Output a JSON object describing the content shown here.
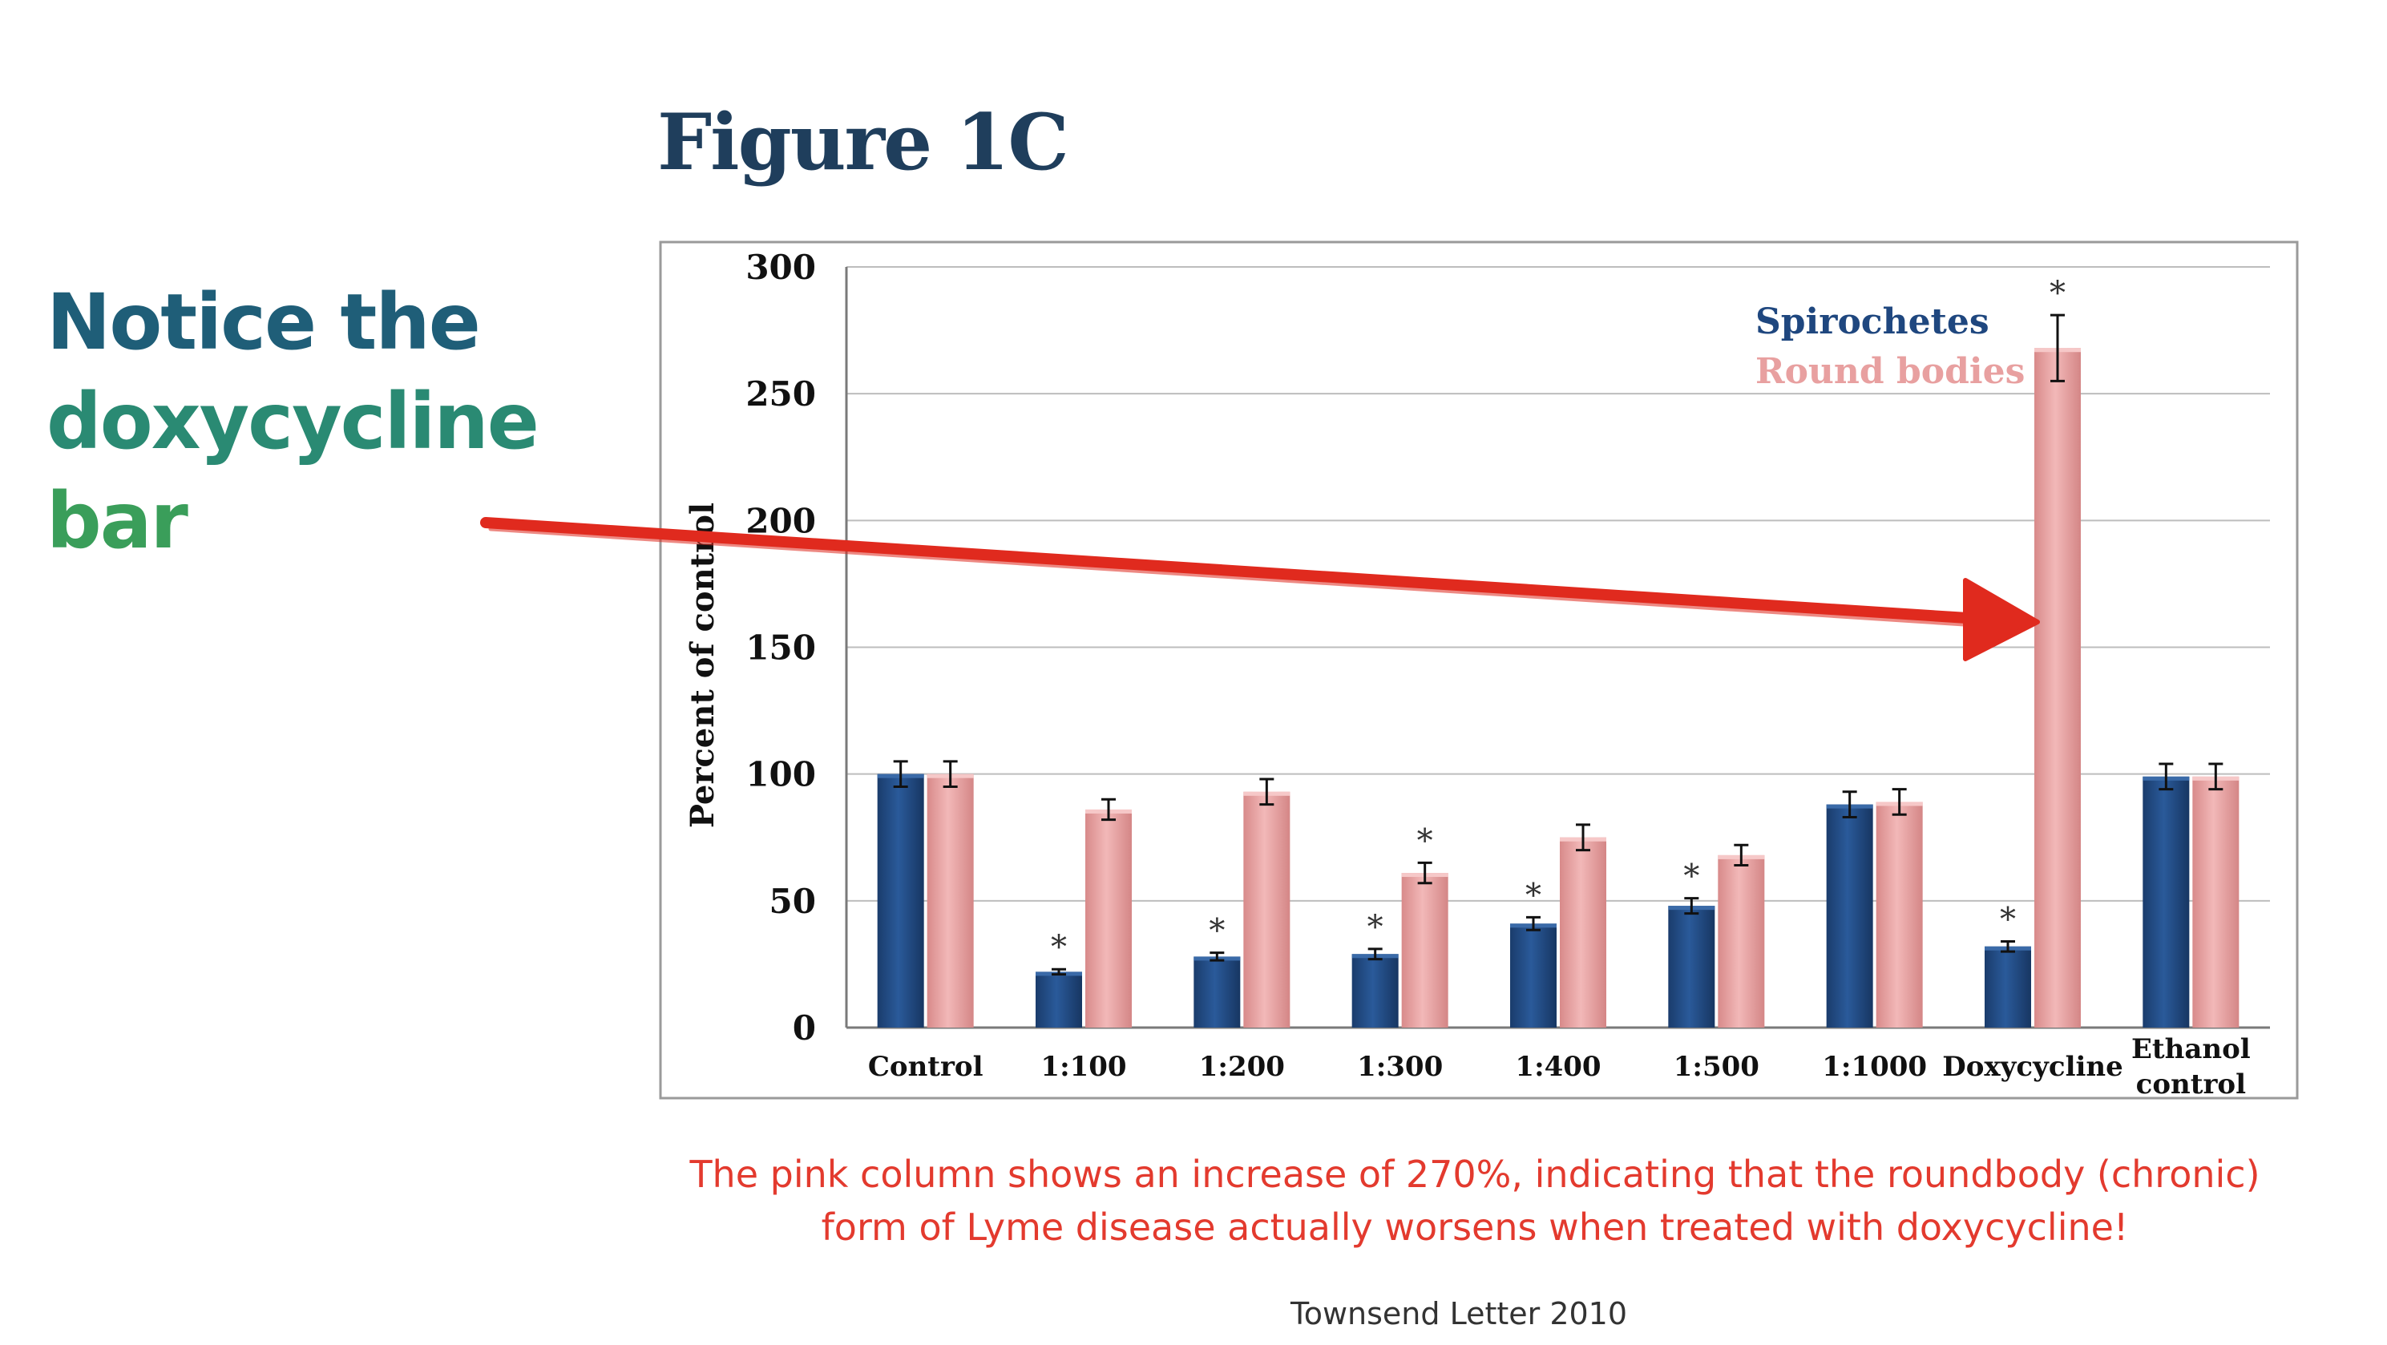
{
  "note": {
    "line1": "Notice the",
    "line2": "doxycycline",
    "line3": "bar"
  },
  "figure_title": "Figure 1C",
  "caption": {
    "line1": "The pink column shows an increase of 270%, indicating that the roundbody (chronic)",
    "line2": "form of Lyme disease actually worsens when treated with doxycycline!"
  },
  "source": "Townsend Letter 2010",
  "colors": {
    "spirochetes": "#1f477f",
    "round_bodies": "#e8a0a0",
    "arrow": "#e02a1e",
    "caption": "#e33a2e"
  },
  "chart_data": {
    "type": "bar",
    "ylabel": "Percent of control",
    "ylim": [
      0,
      300
    ],
    "yticks": [
      0,
      50,
      100,
      150,
      200,
      250,
      300
    ],
    "grid": true,
    "legend_position": "top-right",
    "categories": [
      [
        "Control"
      ],
      [
        "1:100"
      ],
      [
        "1:200"
      ],
      [
        "1:300"
      ],
      [
        "1:400"
      ],
      [
        "1:500"
      ],
      [
        "1:1000"
      ],
      [
        "Doxycycline"
      ],
      [
        "Ethanol",
        "control"
      ]
    ],
    "series": [
      {
        "name": "Spirochetes",
        "values": [
          100,
          22,
          28,
          29,
          41,
          48,
          88,
          32,
          99
        ],
        "errors": [
          5,
          1,
          1.5,
          2,
          2.5,
          3,
          5,
          2,
          5
        ],
        "significant": [
          false,
          true,
          true,
          true,
          true,
          true,
          false,
          true,
          false
        ]
      },
      {
        "name": "Round bodies",
        "values": [
          100,
          86,
          93,
          61,
          75,
          68,
          89,
          268,
          99
        ],
        "errors": [
          5,
          4,
          5,
          4,
          5,
          4,
          5,
          13,
          5
        ],
        "significant": [
          false,
          false,
          false,
          true,
          false,
          false,
          false,
          true,
          false
        ]
      }
    ],
    "significance_marker": "*",
    "annotations": [
      {
        "type": "arrow",
        "points_to": "Doxycycline / Round bodies"
      }
    ]
  }
}
